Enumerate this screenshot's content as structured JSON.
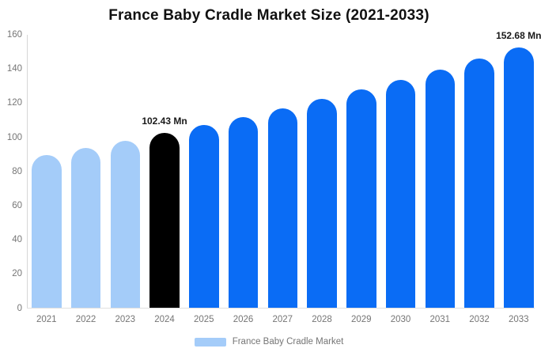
{
  "chart": {
    "title": "France Baby Cradle Market Size (2021-2033)"
  },
  "legend": {
    "label": "France Baby Cradle Market",
    "swatch_color": "#a4ccf9"
  },
  "chart_data": {
    "type": "bar",
    "title": "France Baby Cradle Market Size (2021-2033)",
    "categories": [
      "2021",
      "2022",
      "2023",
      "2024",
      "2025",
      "2026",
      "2027",
      "2028",
      "2029",
      "2030",
      "2031",
      "2032",
      "2033"
    ],
    "values": [
      89.7,
      93.7,
      98.0,
      102.43,
      107.1,
      111.9,
      117.0,
      122.3,
      127.9,
      133.7,
      139.7,
      146.1,
      152.68
    ],
    "bar_color_keys": [
      "light",
      "light",
      "light",
      "black",
      "blue",
      "blue",
      "blue",
      "blue",
      "blue",
      "blue",
      "blue",
      "blue",
      "blue"
    ],
    "colors": {
      "light": "#a4ccf9",
      "blue": "#0a6cf5",
      "black": "#000000"
    },
    "annotations": [
      {
        "index": 3,
        "text": "102.43 Mn"
      },
      {
        "index": 12,
        "text": "152.68 Mn"
      }
    ],
    "xlabel": "",
    "ylabel": "",
    "ylim": [
      0,
      160
    ],
    "yticks": [
      0,
      20,
      40,
      60,
      80,
      100,
      120,
      140,
      160
    ],
    "grid": false,
    "legend_position": "bottom",
    "legend_entries": [
      "France Baby Cradle Market"
    ]
  }
}
